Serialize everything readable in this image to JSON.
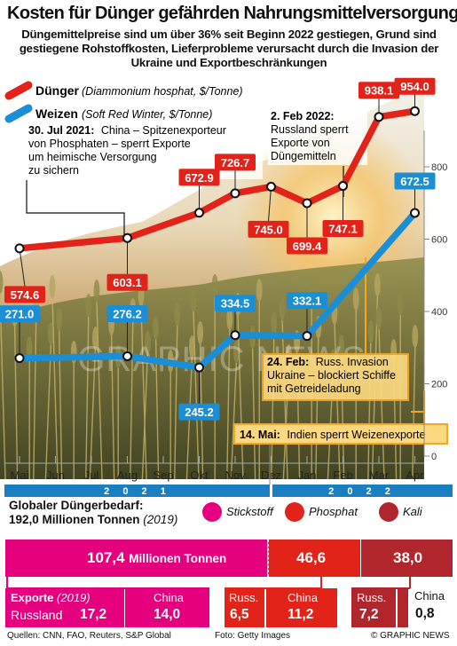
{
  "header": {
    "title": "Kosten für Dünger gefährden Nahrungsmittelversorgung",
    "subtitle": "Düngemittelpreise sind um über 36% seit Beginn 2022 gestiegen, Grund sind gestiegene Rohstoffkosten, Lieferprobleme verursacht durch die Invasion der Ukraine und Exportbeschränkungen"
  },
  "legend": {
    "fertilizer_name": "Dünger",
    "fertilizer_desc": "(Diammonium hosphat, $/Tonne)",
    "wheat_name": "Weizen",
    "wheat_desc": "(Soft Red Winter, $/Tonne)"
  },
  "annotations": {
    "a1_date": "30. Jul 2021:",
    "a1_text1": "China – Spitzenexporteur",
    "a1_text2": "von Phosphaten – sperrt Exporte",
    "a1_text3": "um heimische Versorgung",
    "a1_text4": "zu sichern",
    "a2_date": "2. Feb 2022:",
    "a2_text1": "Russland sperrt",
    "a2_text2": "Exporte von",
    "a2_text3": "Düngemitteln",
    "a3_date": "24. Feb:",
    "a3_text1": "Russ. Invasion",
    "a3_text2": "Ukraine – blockiert Schiffe",
    "a3_text3": "mit Getreideladung",
    "a4_date": "14. Mai:",
    "a4_text": "Indien sperrt Weizenexporte"
  },
  "years": [
    "2 0 2 1",
    "2 0 2 2"
  ],
  "watermark": "GRAPHIC NEWS",
  "chart_data": {
    "type": "line",
    "x": [
      "Mai",
      "Jun",
      "Jul",
      "Aug",
      "Sep",
      "Okt",
      "Nov",
      "Dez",
      "Jan",
      "Feb",
      "Mar",
      "Apr"
    ],
    "ylim": [
      0,
      1000
    ],
    "yticks": [
      0,
      200,
      400,
      600,
      800
    ],
    "series": [
      {
        "name": "Dünger",
        "color": "#e2231a",
        "points": [
          {
            "x": 0,
            "y": 574.6,
            "label": "574.6"
          },
          {
            "x": 3,
            "y": 603.1,
            "label": "603.1"
          },
          {
            "x": 5,
            "y": 672.9,
            "label": "672.9"
          },
          {
            "x": 6,
            "y": 726.7,
            "label": "726.7"
          },
          {
            "x": 7,
            "y": 745.0,
            "label": "745.0"
          },
          {
            "x": 8,
            "y": 699.4,
            "label": "699.4"
          },
          {
            "x": 9,
            "y": 747.1,
            "label": "747.1"
          },
          {
            "x": 10,
            "y": 938.1,
            "label": "938.1"
          },
          {
            "x": 11,
            "y": 954.0,
            "label": "954.0"
          }
        ]
      },
      {
        "name": "Weizen",
        "color": "#1b8fd6",
        "points": [
          {
            "x": 0,
            "y": 271.0,
            "label": "271.0"
          },
          {
            "x": 3,
            "y": 276.2,
            "label": "276.2"
          },
          {
            "x": 5,
            "y": 245.2,
            "label": "245.2"
          },
          {
            "x": 6,
            "y": 334.5,
            "label": "334.5"
          },
          {
            "x": 8,
            "y": 332.1,
            "label": "332.1"
          },
          {
            "x": 11,
            "y": 672.5,
            "label": "672.5"
          }
        ]
      }
    ]
  },
  "fertilizer": {
    "title_line1": "Globaler Düngerbedarf:",
    "title_line2": "192,0 Millionen Tonnen",
    "year": "(2019)",
    "legend": [
      {
        "label": "Stickstoff",
        "color": "#e5007e"
      },
      {
        "label": "Phosphat",
        "color": "#e2231a"
      },
      {
        "label": "Kali",
        "color": "#b1252c"
      }
    ],
    "demand": [
      {
        "name": "Stickstoff",
        "value": 107.4,
        "value_text": "107,4",
        "unit": "Millionen Tonnen",
        "color": "#e5007e"
      },
      {
        "name": "Phosphat",
        "value": 46.6,
        "value_text": "46,6",
        "color": "#e2231a"
      },
      {
        "name": "Kali",
        "value": 38.0,
        "value_text": "38,0",
        "color": "#b1252c"
      }
    ],
    "exports_label": "Exporte",
    "exports_year": "(2019)",
    "exports": [
      {
        "group": "Stickstoff",
        "country": "Russland",
        "value_text": "17,2",
        "color": "#e5007e"
      },
      {
        "group": "Stickstoff",
        "country": "China",
        "value_text": "14,0",
        "color": "#e5007e"
      },
      {
        "group": "Phosphat",
        "country": "Russ.",
        "value_text": "6,5",
        "color": "#e2231a"
      },
      {
        "group": "Phosphat",
        "country": "China",
        "value_text": "11,2",
        "color": "#e2231a"
      },
      {
        "group": "Kali",
        "country": "Russ.",
        "value_text": "7,2",
        "color": "#b1252c"
      },
      {
        "group": "Kali",
        "country": "China",
        "value_text": "0,8",
        "color": "#b1252c"
      }
    ]
  },
  "footer": {
    "sources": "Quellen: CNN, FAO, Reuters, S&P Global",
    "photo": "Foto: Getty Images",
    "copyright": "© GRAPHIC NEWS"
  }
}
